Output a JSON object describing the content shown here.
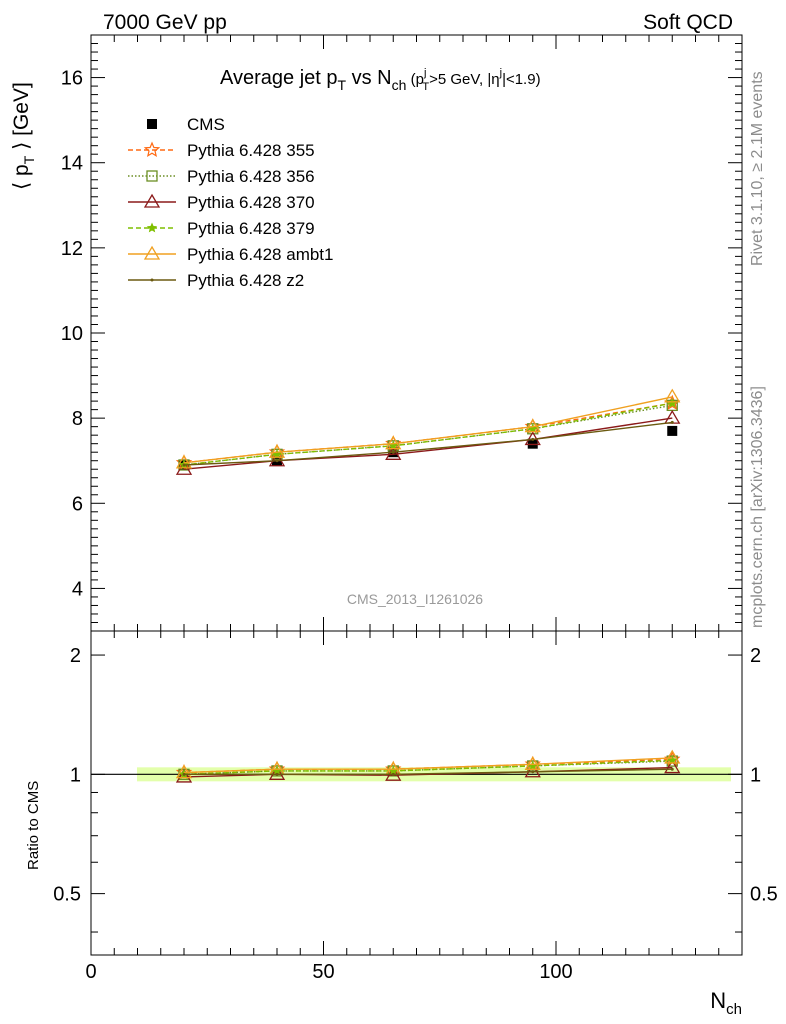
{
  "header": {
    "left": "7000 GeV pp",
    "right": "Soft QCD"
  },
  "side_labels": {
    "top": "Rivet 3.1.10, ≥ 2.1M events",
    "bottom": "mcplots.cern.ch [arXiv:1306.3436]"
  },
  "chart_data": [
    {
      "type": "line",
      "title": "Average jet pT vs Nch (pTj>5 GeV, |ηj|<1.9)",
      "title_parts": {
        "main": "Average jet p",
        "sub1": "T",
        "vs": " vs N",
        "sub2": "ch",
        "cut_a": " (p",
        "cut_a_sup": "j",
        "cut_a_sub": "T",
        "cut_b": ">5 GeV, |η",
        "cut_b_sup": "j",
        "cut_c": "|<1.9)"
      },
      "ylabel": "⟨ pT ⟩ [GeV]",
      "ylabel_parts": {
        "main": "⟨ p",
        "sub": "T",
        "end": " ⟩ [GeV]"
      },
      "xlabel": "Nch",
      "xlabel_parts": {
        "main": "N",
        "sub": "ch"
      },
      "watermark": "CMS_2013_I1261026",
      "xlim": [
        0,
        140
      ],
      "ylim": [
        3,
        17
      ],
      "y_ticks": [
        4,
        6,
        8,
        10,
        12,
        14,
        16
      ],
      "x_ticks": [
        0,
        50,
        100
      ],
      "legend_position": "top-left",
      "x": [
        20,
        40,
        65,
        95,
        125
      ],
      "series": [
        {
          "name": "CMS",
          "values": [
            6.9,
            7.0,
            7.2,
            7.4,
            7.7
          ],
          "color": "#000000",
          "marker": "square-filled",
          "line": "none"
        },
        {
          "name": "Pythia 6.428 355",
          "values": [
            6.95,
            7.2,
            7.4,
            7.8,
            8.35
          ],
          "color": "#ff6a13",
          "marker": "star-open",
          "line": "dashed"
        },
        {
          "name": "Pythia 6.428 356",
          "values": [
            6.9,
            7.15,
            7.35,
            7.75,
            8.3
          ],
          "color": "#6b8e23",
          "marker": "square-open",
          "line": "dotted"
        },
        {
          "name": "Pythia 6.428 370",
          "values": [
            6.8,
            7.0,
            7.15,
            7.5,
            8.0
          ],
          "color": "#8b1a1a",
          "marker": "triangle-open",
          "line": "solid"
        },
        {
          "name": "Pythia 6.428 379",
          "values": [
            6.9,
            7.15,
            7.35,
            7.75,
            8.35
          ],
          "color": "#7fbf00",
          "marker": "star-filled",
          "line": "dashed"
        },
        {
          "name": "Pythia 6.428 ambt1",
          "values": [
            6.95,
            7.2,
            7.4,
            7.8,
            8.5
          ],
          "color": "#f0a020",
          "marker": "triangle-open",
          "line": "solid"
        },
        {
          "name": "Pythia 6.428 z2",
          "values": [
            6.9,
            7.0,
            7.2,
            7.5,
            7.9
          ],
          "color": "#6b5a10",
          "marker": "dot",
          "line": "solid"
        }
      ]
    },
    {
      "type": "line",
      "ylabel": "Ratio to CMS",
      "xlim": [
        0,
        140
      ],
      "ylim": [
        0.35,
        2.3
      ],
      "y_ticks": [
        0.5,
        1,
        2
      ],
      "y_tick_labels": [
        "0.5",
        "1",
        "2"
      ],
      "x_ticks": [
        0,
        50,
        100
      ],
      "x_tick_labels": [
        "0",
        "50",
        "100"
      ],
      "band_color": "#ccff66",
      "x": [
        20,
        40,
        65,
        95,
        125
      ],
      "series": [
        {
          "name": "Pythia 6.428 355",
          "values": [
            1.01,
            1.03,
            1.03,
            1.06,
            1.09
          ],
          "color": "#ff6a13",
          "marker": "star-open",
          "line": "dashed"
        },
        {
          "name": "Pythia 6.428 356",
          "values": [
            1.0,
            1.02,
            1.02,
            1.05,
            1.08
          ],
          "color": "#6b8e23",
          "marker": "square-open",
          "line": "dotted"
        },
        {
          "name": "Pythia 6.428 370",
          "values": [
            0.985,
            1.0,
            0.995,
            1.015,
            1.04
          ],
          "color": "#8b1a1a",
          "marker": "triangle-open",
          "line": "solid"
        },
        {
          "name": "Pythia 6.428 379",
          "values": [
            1.0,
            1.02,
            1.02,
            1.05,
            1.085
          ],
          "color": "#7fbf00",
          "marker": "star-filled",
          "line": "dashed"
        },
        {
          "name": "Pythia 6.428 ambt1",
          "values": [
            1.01,
            1.03,
            1.03,
            1.06,
            1.1
          ],
          "color": "#f0a020",
          "marker": "triangle-open",
          "line": "solid"
        },
        {
          "name": "Pythia 6.428 z2",
          "values": [
            1.0,
            1.0,
            1.0,
            1.015,
            1.03
          ],
          "color": "#6b5a10",
          "marker": "dot",
          "line": "solid"
        }
      ]
    }
  ]
}
